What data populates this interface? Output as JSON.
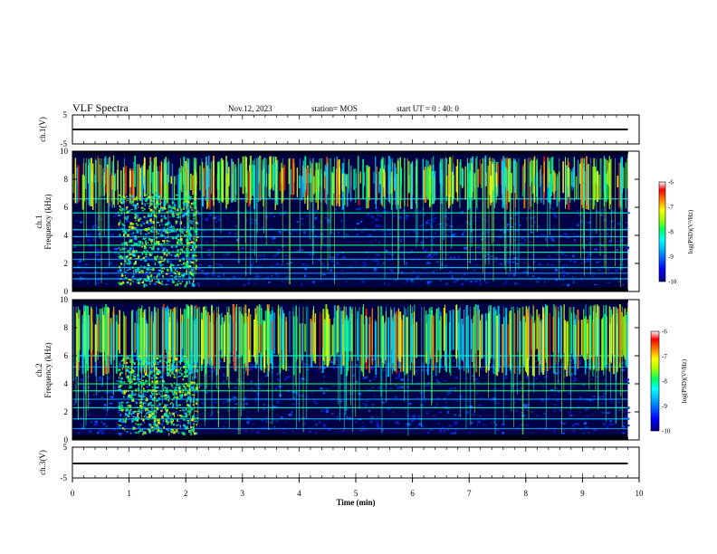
{
  "header": {
    "title": "VLF Spectra",
    "date": "Nov.12, 2023",
    "station": "station= MOS",
    "start_ut": "start UT =  0 : 40: 0"
  },
  "x_axis": {
    "label": "Time (min)",
    "range": [
      0,
      10
    ],
    "ticks": [
      "0",
      "1",
      "2",
      "3",
      "4",
      "5",
      "6",
      "7",
      "8",
      "9",
      "10"
    ]
  },
  "channels": {
    "ch1_wave": {
      "label": "ch.1(V)",
      "ylim": [
        -5,
        5
      ],
      "ticks": [
        "5",
        "-5"
      ]
    },
    "ch1_spec": {
      "label": "ch.1\nFrequency (kHz)",
      "label_top": "ch.1",
      "label_bottom": "Frequency (kHz)",
      "ylim": [
        0,
        10
      ],
      "ticks": [
        "0",
        "2",
        "4",
        "6",
        "8",
        "10"
      ]
    },
    "ch2_spec": {
      "label_top": "ch.2",
      "label_bottom": "Frequency (kHz)",
      "ylim": [
        0,
        10
      ],
      "ticks": [
        "0",
        "2",
        "4",
        "6",
        "8",
        "10"
      ]
    },
    "ch3_wave": {
      "label": "ch.3(V)",
      "ylim": [
        -5,
        5
      ],
      "ticks": [
        "5",
        "-5"
      ]
    }
  },
  "colorbar": {
    "label": "log(PSD)(V²/Hz)",
    "range": [
      -10,
      -6
    ],
    "ticks": [
      "-6",
      "-7",
      "-8",
      "-9",
      "-10"
    ],
    "colors": [
      "#000080",
      "#0000ff",
      "#00a0ff",
      "#00ffff",
      "#00ff60",
      "#a0ff00",
      "#ffff00",
      "#ff8000",
      "#ff0000",
      "#ffffff"
    ]
  },
  "chart_data": [
    {
      "type": "line",
      "name": "ch.1(V)",
      "x": [
        0,
        9.8
      ],
      "values": [
        0,
        0
      ],
      "xlim": [
        0,
        10
      ],
      "ylim": [
        -5,
        5
      ],
      "xlabel": "",
      "ylabel": "ch.1(V)"
    },
    {
      "type": "heatmap",
      "name": "ch.1",
      "xlim": [
        0,
        10
      ],
      "ylim": [
        0,
        10
      ],
      "xlabel": "Time (min)",
      "ylabel": "Frequency (kHz)",
      "data_end_min": 9.8,
      "dense_interval_min": [
        0.8,
        2.2
      ],
      "colorbar_range": [
        -10,
        -6
      ]
    },
    {
      "type": "heatmap",
      "name": "ch.2",
      "xlim": [
        0,
        10
      ],
      "ylim": [
        0,
        10
      ],
      "xlabel": "Time (min)",
      "ylabel": "Frequency (kHz)",
      "data_end_min": 9.8,
      "dense_interval_min": [
        0.8,
        2.2
      ],
      "colorbar_range": [
        -10,
        -6
      ]
    },
    {
      "type": "line",
      "name": "ch.3(V)",
      "x": [
        0,
        9.8
      ],
      "values": [
        0,
        0
      ],
      "xlim": [
        0,
        10
      ],
      "ylim": [
        -5,
        5
      ],
      "xlabel": "Time (min)",
      "ylabel": "ch.3(V)"
    }
  ]
}
